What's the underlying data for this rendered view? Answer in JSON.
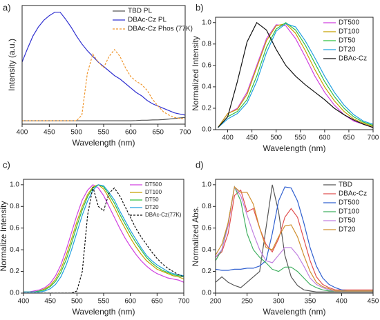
{
  "chart_data": [
    {
      "type": "line",
      "panel_label": "a)",
      "x_label": "Wavelength (nm)",
      "y_label": "Intensity (a.u.)",
      "xlim": [
        400,
        700
      ],
      "xticks": [
        400,
        450,
        500,
        550,
        600,
        650,
        700
      ],
      "ylim": [
        0,
        1.05
      ],
      "legend": "top-right",
      "x": [
        400,
        410,
        420,
        430,
        440,
        450,
        460,
        470,
        480,
        490,
        500,
        510,
        520,
        530,
        540,
        550,
        560,
        570,
        580,
        590,
        600,
        610,
        620,
        630,
        640,
        650,
        660,
        670,
        680,
        690,
        700
      ],
      "series": [
        {
          "name": "TBD PL",
          "color": "#555555",
          "values": [
            0.03,
            0.03,
            0.03,
            0.03,
            0.03,
            0.03,
            0.03,
            0.03,
            0.03,
            0.03,
            0.03,
            0.03,
            0.03,
            0.03,
            0.03,
            0.03,
            0.03,
            0.03,
            0.03,
            0.03,
            0.03,
            0.032,
            0.035,
            0.035,
            0.037,
            0.038,
            0.04,
            0.045,
            0.05,
            0.055,
            0.06
          ]
        },
        {
          "name": "DBAc-Cz PL",
          "color": "#3030d0",
          "values": [
            0.55,
            0.67,
            0.78,
            0.86,
            0.92,
            0.96,
            0.99,
            0.99,
            0.93,
            0.86,
            0.78,
            0.71,
            0.65,
            0.6,
            0.55,
            0.51,
            0.47,
            0.43,
            0.4,
            0.36,
            0.32,
            0.28,
            0.25,
            0.21,
            0.18,
            0.16,
            0.14,
            0.12,
            0.1,
            0.09,
            0.08
          ]
        },
        {
          "name": "DBAc-Cz Phos (77K)",
          "color": "#f0962d",
          "dash": "3,2",
          "values": [
            0.03,
            0.03,
            0.03,
            0.03,
            0.03,
            0.03,
            0.03,
            0.03,
            0.03,
            0.03,
            0.03,
            0.08,
            0.45,
            0.62,
            0.55,
            0.5,
            0.6,
            0.66,
            0.6,
            0.5,
            0.42,
            0.38,
            0.35,
            0.3,
            0.22,
            0.16,
            0.11,
            0.08,
            0.06,
            0.05,
            0.05
          ]
        }
      ]
    },
    {
      "type": "line",
      "panel_label": "b)",
      "x_label": "Wavelength (nm)",
      "y_label": "Normalized Intensity",
      "xlim": [
        375,
        700
      ],
      "xticks": [
        400,
        450,
        500,
        550,
        600,
        650,
        700
      ],
      "ylim": [
        0,
        1.05
      ],
      "yticks": [
        {
          "value": 0,
          "label": "0.0"
        },
        0.2,
        0.4,
        0.6,
        0.8,
        {
          "value": 1,
          "label": "1.0"
        }
      ],
      "legend": "top-right",
      "x": [
        380,
        400,
        420,
        440,
        460,
        480,
        500,
        520,
        540,
        560,
        580,
        600,
        620,
        640,
        660,
        680,
        700
      ],
      "series": [
        {
          "name": "DT500",
          "color": "#d040e0",
          "values": [
            0.02,
            0.15,
            0.2,
            0.35,
            0.6,
            0.85,
            0.98,
            0.97,
            0.85,
            0.68,
            0.5,
            0.35,
            0.23,
            0.14,
            0.08,
            0.05,
            0.02
          ]
        },
        {
          "name": "DT100",
          "color": "#c8a000",
          "values": [
            0.02,
            0.15,
            0.19,
            0.33,
            0.58,
            0.83,
            0.97,
            0.99,
            0.9,
            0.74,
            0.56,
            0.4,
            0.27,
            0.17,
            0.1,
            0.06,
            0.03
          ]
        },
        {
          "name": "DT50",
          "color": "#30c040",
          "values": [
            0.02,
            0.12,
            0.17,
            0.28,
            0.5,
            0.77,
            0.94,
            1.0,
            0.93,
            0.79,
            0.62,
            0.45,
            0.31,
            0.2,
            0.12,
            0.07,
            0.04
          ]
        },
        {
          "name": "DT20",
          "color": "#20a0e0",
          "values": [
            0.02,
            0.1,
            0.15,
            0.25,
            0.45,
            0.72,
            0.92,
            0.99,
            0.96,
            0.83,
            0.67,
            0.5,
            0.35,
            0.23,
            0.14,
            0.08,
            0.05
          ]
        },
        {
          "name": "DBAc-Cz",
          "color": "#111111",
          "values": [
            0.02,
            0.12,
            0.45,
            0.82,
            1.0,
            0.93,
            0.75,
            0.6,
            0.5,
            0.42,
            0.35,
            0.28,
            0.2,
            0.14,
            0.09,
            0.05,
            0.02
          ]
        }
      ]
    },
    {
      "type": "line",
      "panel_label": "c)",
      "x_label": "Wavelength (nm)",
      "y_label": "Normalize Intensity",
      "xlim": [
        400,
        700
      ],
      "xticks": [
        400,
        450,
        500,
        550,
        600,
        650,
        700
      ],
      "ylim": [
        0,
        1.05
      ],
      "yticks": [
        {
          "value": 0,
          "label": "0.0"
        },
        0.2,
        0.4,
        0.6,
        0.8,
        {
          "value": 1,
          "label": "1.0"
        }
      ],
      "legend": "top-right",
      "x": [
        400,
        410,
        420,
        430,
        440,
        450,
        460,
        470,
        480,
        490,
        500,
        510,
        520,
        530,
        540,
        550,
        560,
        570,
        580,
        590,
        600,
        610,
        620,
        630,
        640,
        650,
        660,
        670,
        680,
        690,
        700
      ],
      "series": [
        {
          "name": "DT500",
          "color": "#d040e0",
          "values": [
            0.01,
            0.01,
            0.02,
            0.03,
            0.05,
            0.09,
            0.16,
            0.26,
            0.4,
            0.56,
            0.72,
            0.86,
            0.95,
            1.0,
            0.97,
            0.9,
            0.8,
            0.7,
            0.6,
            0.51,
            0.43,
            0.36,
            0.3,
            0.25,
            0.21,
            0.18,
            0.16,
            0.14,
            0.13,
            0.12,
            0.1
          ]
        },
        {
          "name": "DT100",
          "color": "#c8a000",
          "values": [
            0.01,
            0.01,
            0.01,
            0.02,
            0.04,
            0.07,
            0.13,
            0.22,
            0.35,
            0.5,
            0.66,
            0.8,
            0.91,
            0.98,
            1.0,
            0.96,
            0.88,
            0.79,
            0.69,
            0.6,
            0.51,
            0.43,
            0.36,
            0.3,
            0.26,
            0.22,
            0.2,
            0.18,
            0.16,
            0.15,
            0.13
          ]
        },
        {
          "name": "DT50",
          "color": "#30c040",
          "values": [
            0.01,
            0.01,
            0.01,
            0.02,
            0.03,
            0.06,
            0.11,
            0.19,
            0.31,
            0.46,
            0.62,
            0.77,
            0.89,
            0.97,
            1.0,
            0.98,
            0.91,
            0.83,
            0.73,
            0.64,
            0.55,
            0.47,
            0.4,
            0.33,
            0.28,
            0.24,
            0.21,
            0.19,
            0.17,
            0.16,
            0.15
          ]
        },
        {
          "name": "DT20",
          "color": "#20a0e0",
          "values": [
            0.01,
            0.01,
            0.01,
            0.01,
            0.02,
            0.04,
            0.08,
            0.15,
            0.26,
            0.4,
            0.56,
            0.72,
            0.85,
            0.95,
            1.0,
            0.99,
            0.93,
            0.86,
            0.76,
            0.67,
            0.58,
            0.5,
            0.42,
            0.35,
            0.3,
            0.26,
            0.23,
            0.2,
            0.18,
            0.17,
            0.16
          ]
        },
        {
          "name": "DBAc-Cz(77K)",
          "color": "#111111",
          "dash": "3,2",
          "values": [
            0,
            0,
            0,
            0,
            0,
            0,
            0,
            0,
            0,
            0,
            0.02,
            0.2,
            0.72,
            0.98,
            0.8,
            0.76,
            0.92,
            0.97,
            0.9,
            0.8,
            0.7,
            0.6,
            0.52,
            0.45,
            0.38,
            0.32,
            0.27,
            0.23,
            0.2,
            0.17,
            0.15
          ]
        }
      ]
    },
    {
      "type": "line",
      "panel_label": "d)",
      "x_label": "Wavelength (nm)",
      "y_label": "Normalized Abs.",
      "xlim": [
        200,
        450
      ],
      "xticks": [
        200,
        250,
        300,
        350,
        400,
        450
      ],
      "ylim": [
        0,
        1.05
      ],
      "yticks": [
        {
          "value": 0,
          "label": "0.0"
        },
        0.2,
        0.4,
        0.6,
        0.8,
        {
          "value": 1,
          "label": "1.0"
        }
      ],
      "legend": "top-right",
      "x": [
        200,
        210,
        220,
        230,
        240,
        250,
        260,
        270,
        280,
        290,
        300,
        310,
        320,
        330,
        340,
        350,
        360,
        370,
        380,
        390,
        400,
        410,
        420,
        430,
        440,
        450
      ],
      "series": [
        {
          "name": "TBD",
          "color": "#555555",
          "values": [
            0.1,
            0.15,
            0.1,
            0.07,
            0.05,
            0.1,
            0.15,
            0.2,
            0.6,
            1.0,
            0.75,
            0.35,
            0.15,
            0.07,
            0.03,
            0.02,
            0.01,
            0.01,
            0.01,
            0.01,
            0.01,
            0.01,
            0.01,
            0.01,
            0.01,
            0.01
          ]
        },
        {
          "name": "DBAc-Cz",
          "color": "#e05050",
          "values": [
            0.33,
            0.38,
            0.55,
            0.9,
            0.95,
            0.75,
            0.78,
            0.6,
            0.45,
            0.38,
            0.5,
            0.7,
            0.78,
            0.7,
            0.5,
            0.3,
            0.15,
            0.08,
            0.05,
            0.03,
            0.03,
            0.03,
            0.03,
            0.03,
            0.03,
            0.03
          ]
        },
        {
          "name": "DT500",
          "color": "#3060d0",
          "values": [
            0.22,
            0.21,
            0.21,
            0.22,
            0.22,
            0.23,
            0.23,
            0.25,
            0.3,
            0.55,
            0.85,
            0.98,
            0.97,
            0.85,
            0.65,
            0.42,
            0.25,
            0.14,
            0.08,
            0.05,
            0.03,
            0.02,
            0.02,
            0.02,
            0.02,
            0.02
          ]
        },
        {
          "name": "DT100",
          "color": "#40b060",
          "values": [
            0.3,
            0.4,
            0.65,
            0.98,
            0.85,
            0.55,
            0.4,
            0.33,
            0.28,
            0.22,
            0.2,
            0.24,
            0.24,
            0.2,
            0.14,
            0.08,
            0.05,
            0.03,
            0.02,
            0.02,
            0.02,
            0.02,
            0.02,
            0.02,
            0.02,
            0.02
          ]
        },
        {
          "name": "DT50",
          "color": "#c080e0",
          "values": [
            0.33,
            0.4,
            0.62,
            0.98,
            0.9,
            0.72,
            0.55,
            0.4,
            0.3,
            0.28,
            0.35,
            0.42,
            0.42,
            0.35,
            0.25,
            0.14,
            0.08,
            0.05,
            0.03,
            0.02,
            0.02,
            0.02,
            0.02,
            0.02,
            0.02,
            0.02
          ]
        },
        {
          "name": "DT20",
          "color": "#d09030",
          "values": [
            0.35,
            0.45,
            0.65,
            0.98,
            0.93,
            0.93,
            0.82,
            0.6,
            0.42,
            0.4,
            0.52,
            0.62,
            0.63,
            0.52,
            0.35,
            0.2,
            0.1,
            0.06,
            0.04,
            0.02,
            0.02,
            0.02,
            0.02,
            0.02,
            0.02,
            0.02
          ]
        }
      ]
    }
  ]
}
